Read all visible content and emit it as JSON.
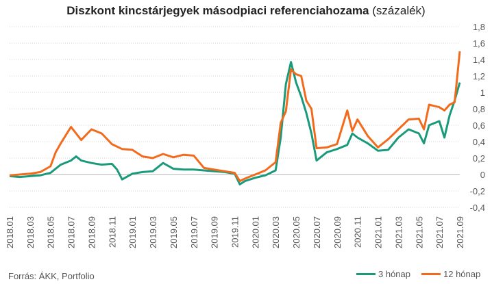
{
  "header": {
    "title_bold": "Diszkont kincstárjegyek másodpiaci referenciahozama",
    "title_suffix": "(százalék)"
  },
  "footer": {
    "source": "Forrás: ÁKK, Portfolio"
  },
  "colors": {
    "series1": "#1a9a7a",
    "series2": "#f26b1d",
    "grid": "#d0d0d0"
  },
  "chart_data": {
    "type": "line",
    "title": "Diszkont kincstárjegyek másodpiaci referenciahozama (százalék)",
    "xlabel": "",
    "ylabel": "",
    "ylim": [
      -0.4,
      1.8
    ],
    "yticks": [
      -0.4,
      -0.2,
      0,
      0.2,
      0.4,
      0.6,
      0.8,
      1,
      1.2,
      1.4,
      1.6,
      1.8
    ],
    "ytick_labels": [
      "-0,4",
      "-0,2",
      "0",
      "0,2",
      "0,4",
      "0,6",
      "0,8",
      "1",
      "1,2",
      "1,4",
      "1,6",
      "1,8"
    ],
    "x_axis": "time",
    "xlim": [
      "2018.01",
      "2021.09"
    ],
    "xtick_labels": [
      "2018.01",
      "2018.03",
      "2018.05",
      "2018.07",
      "2018.09",
      "2018.11",
      "2019.01",
      "2019.03",
      "2019.05",
      "2019.07",
      "2019.09",
      "2019.11",
      "2020.01",
      "2020.03",
      "2020.05",
      "2020.07",
      "2020.09",
      "2020.11",
      "2021.01",
      "2021.03",
      "2021.05",
      "2021.07",
      "2021.09"
    ],
    "grid": "horizontal",
    "legend_position": "bottom-right",
    "series": [
      {
        "name": "3 hónap",
        "color": "#1a9a7a",
        "points": [
          [
            "2018.01",
            -0.02
          ],
          [
            "2018.02",
            -0.03
          ],
          [
            "2018.03",
            -0.02
          ],
          [
            "2018.04",
            -0.01
          ],
          [
            "2018.05",
            0.02
          ],
          [
            "2018.06",
            0.12
          ],
          [
            "2018.07",
            0.17
          ],
          [
            "2018.075",
            0.22
          ],
          [
            "2018.08",
            0.17
          ],
          [
            "2018.09",
            0.14
          ],
          [
            "2018.10",
            0.12
          ],
          [
            "2018.11",
            0.13
          ],
          [
            "2018.115",
            0.06
          ],
          [
            "2018.12",
            -0.06
          ],
          [
            "2019.01",
            0.01
          ],
          [
            "2019.02",
            0.03
          ],
          [
            "2019.03",
            0.04
          ],
          [
            "2019.04",
            0.14
          ],
          [
            "2019.05",
            0.07
          ],
          [
            "2019.06",
            0.06
          ],
          [
            "2019.07",
            0.06
          ],
          [
            "2019.08",
            0.05
          ],
          [
            "2019.09",
            0.04
          ],
          [
            "2019.10",
            0.03
          ],
          [
            "2019.11",
            0.01
          ],
          [
            "2019.115",
            -0.12
          ],
          [
            "2019.12",
            -0.08
          ],
          [
            "2020.01",
            -0.04
          ],
          [
            "2020.02",
            -0.01
          ],
          [
            "2020.03",
            0.05
          ],
          [
            "2020.035",
            0.45
          ],
          [
            "2020.04",
            1.1
          ],
          [
            "2020.045",
            1.37
          ],
          [
            "2020.05",
            1.12
          ],
          [
            "2020.055",
            0.95
          ],
          [
            "2020.06",
            0.75
          ],
          [
            "2020.065",
            0.5
          ],
          [
            "2020.07",
            0.17
          ],
          [
            "2020.08",
            0.27
          ],
          [
            "2020.09",
            0.31
          ],
          [
            "2020.10",
            0.36
          ],
          [
            "2020.105",
            0.5
          ],
          [
            "2020.11",
            0.45
          ],
          [
            "2020.12",
            0.38
          ],
          [
            "2021.01",
            0.29
          ],
          [
            "2021.02",
            0.3
          ],
          [
            "2021.03",
            0.45
          ],
          [
            "2021.04",
            0.55
          ],
          [
            "2021.05",
            0.5
          ],
          [
            "2021.055",
            0.38
          ],
          [
            "2021.06",
            0.6
          ],
          [
            "2021.07",
            0.65
          ],
          [
            "2021.075",
            0.45
          ],
          [
            "2021.08",
            0.72
          ],
          [
            "2021.085",
            0.9
          ],
          [
            "2021.09",
            1.12
          ]
        ]
      },
      {
        "name": "12 hónap",
        "color": "#f26b1d",
        "points": [
          [
            "2018.01",
            -0.01
          ],
          [
            "2018.02",
            0.0
          ],
          [
            "2018.03",
            0.01
          ],
          [
            "2018.04",
            0.03
          ],
          [
            "2018.05",
            0.1
          ],
          [
            "2018.055",
            0.27
          ],
          [
            "2018.06",
            0.38
          ],
          [
            "2018.07",
            0.58
          ],
          [
            "2018.075",
            0.5
          ],
          [
            "2018.08",
            0.42
          ],
          [
            "2018.09",
            0.55
          ],
          [
            "2018.10",
            0.5
          ],
          [
            "2018.11",
            0.37
          ],
          [
            "2018.12",
            0.31
          ],
          [
            "2019.01",
            0.3
          ],
          [
            "2019.02",
            0.22
          ],
          [
            "2019.03",
            0.2
          ],
          [
            "2019.04",
            0.25
          ],
          [
            "2019.05",
            0.21
          ],
          [
            "2019.06",
            0.24
          ],
          [
            "2019.07",
            0.23
          ],
          [
            "2019.08",
            0.08
          ],
          [
            "2019.09",
            0.06
          ],
          [
            "2019.10",
            0.04
          ],
          [
            "2019.11",
            0.02
          ],
          [
            "2019.115",
            -0.08
          ],
          [
            "2019.12",
            -0.05
          ],
          [
            "2020.01",
            0.0
          ],
          [
            "2020.02",
            0.05
          ],
          [
            "2020.03",
            0.15
          ],
          [
            "2020.035",
            0.63
          ],
          [
            "2020.04",
            0.77
          ],
          [
            "2020.045",
            1.28
          ],
          [
            "2020.05",
            1.22
          ],
          [
            "2020.055",
            1.2
          ],
          [
            "2020.06",
            0.9
          ],
          [
            "2020.065",
            0.8
          ],
          [
            "2020.07",
            0.32
          ],
          [
            "2020.08",
            0.33
          ],
          [
            "2020.09",
            0.37
          ],
          [
            "2020.10",
            0.78
          ],
          [
            "2020.105",
            0.53
          ],
          [
            "2020.11",
            0.67
          ],
          [
            "2020.12",
            0.47
          ],
          [
            "2021.01",
            0.33
          ],
          [
            "2021.02",
            0.43
          ],
          [
            "2021.03",
            0.55
          ],
          [
            "2021.04",
            0.67
          ],
          [
            "2021.05",
            0.68
          ],
          [
            "2021.055",
            0.55
          ],
          [
            "2021.06",
            0.85
          ],
          [
            "2021.07",
            0.82
          ],
          [
            "2021.075",
            0.78
          ],
          [
            "2021.08",
            0.85
          ],
          [
            "2021.085",
            0.88
          ],
          [
            "2021.09",
            1.5
          ]
        ]
      }
    ]
  }
}
